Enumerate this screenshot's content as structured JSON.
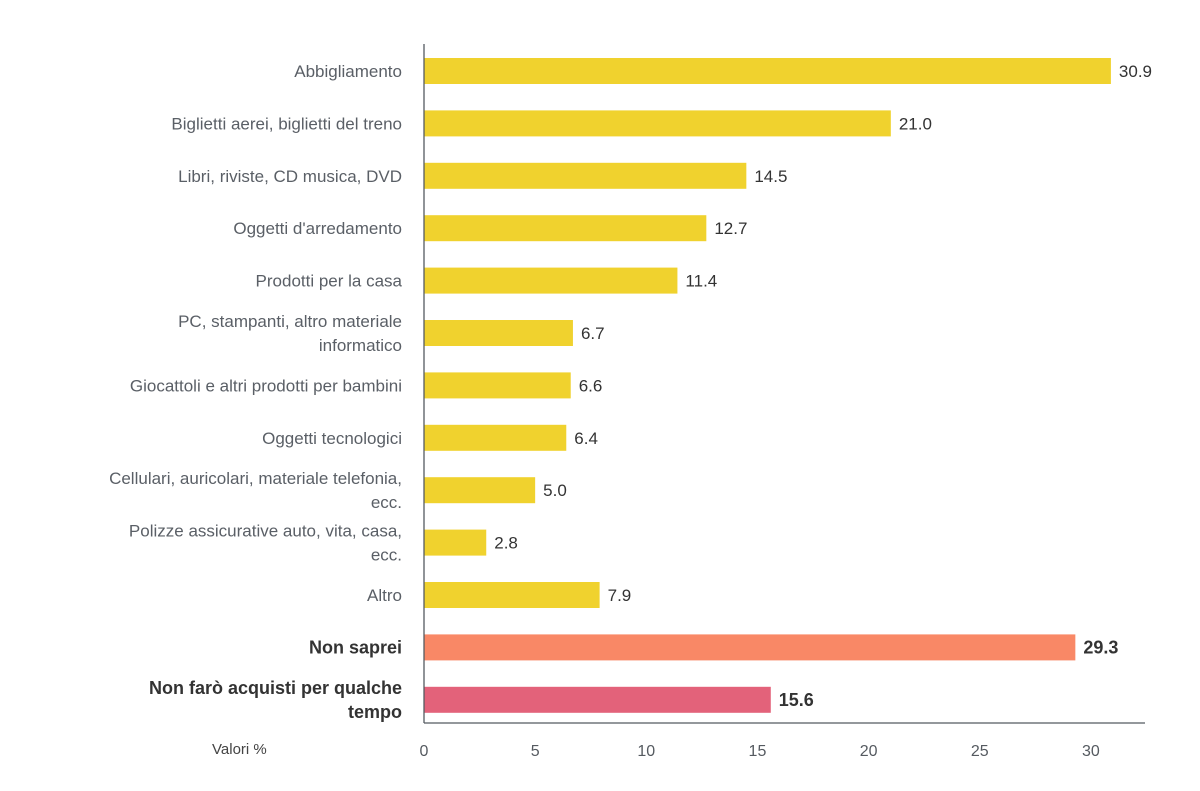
{
  "chart_data": {
    "type": "bar",
    "orientation": "horizontal",
    "xlabel": "Valori %",
    "xlim": [
      0,
      32.4
    ],
    "xticks": [
      0,
      5,
      10,
      15,
      20,
      25,
      30
    ],
    "grid": false,
    "categories": [
      "Abbigliamento",
      "Biglietti aerei, biglietti del treno",
      "Libri, riviste, CD musica, DVD",
      "Oggetti d'arredamento",
      "Prodotti per la casa",
      "PC, stampanti, altro materiale informatico",
      "Giocattoli e altri prodotti per bambini",
      "Oggetti tecnologici",
      "Cellulari, auricolari, materiale telefonia, ecc.",
      "Polizze assicurative auto, vita, casa, ecc.",
      "Altro",
      "Non saprei",
      "Non farò acquisti per qualche tempo"
    ],
    "label_lines": [
      [
        "Abbigliamento"
      ],
      [
        "Biglietti aerei, biglietti del treno"
      ],
      [
        "Libri, riviste, CD musica, DVD"
      ],
      [
        "Oggetti d'arredamento"
      ],
      [
        "Prodotti per la casa"
      ],
      [
        "PC, stampanti, altro materiale",
        "informatico"
      ],
      [
        "Giocattoli e altri prodotti per bambini"
      ],
      [
        "Oggetti tecnologici"
      ],
      [
        "Cellulari, auricolari, materiale telefonia,",
        "ecc."
      ],
      [
        "Polizze assicurative auto, vita, casa,",
        "ecc."
      ],
      [
        "Altro"
      ],
      [
        "Non saprei"
      ],
      [
        "Non farò acquisti per qualche",
        "tempo"
      ]
    ],
    "values": [
      30.9,
      21.0,
      14.5,
      12.7,
      11.4,
      6.7,
      6.6,
      6.4,
      5.0,
      2.8,
      7.9,
      29.3,
      15.6
    ],
    "value_labels": [
      "30.9",
      "21.0",
      "14.5",
      "12.7",
      "11.4",
      "6.7",
      "6.6",
      "6.4",
      "5.0",
      "2.8",
      "7.9",
      "29.3",
      "15.6"
    ],
    "emphasis": [
      false,
      false,
      false,
      false,
      false,
      false,
      false,
      false,
      false,
      false,
      false,
      true,
      true
    ],
    "colors": [
      "#f0d22e",
      "#f0d22e",
      "#f0d22e",
      "#f0d22e",
      "#f0d22e",
      "#f0d22e",
      "#f0d22e",
      "#f0d22e",
      "#f0d22e",
      "#f0d22e",
      "#f0d22e",
      "#f98866",
      "#e3627a"
    ],
    "axis_color": "#555a60"
  }
}
